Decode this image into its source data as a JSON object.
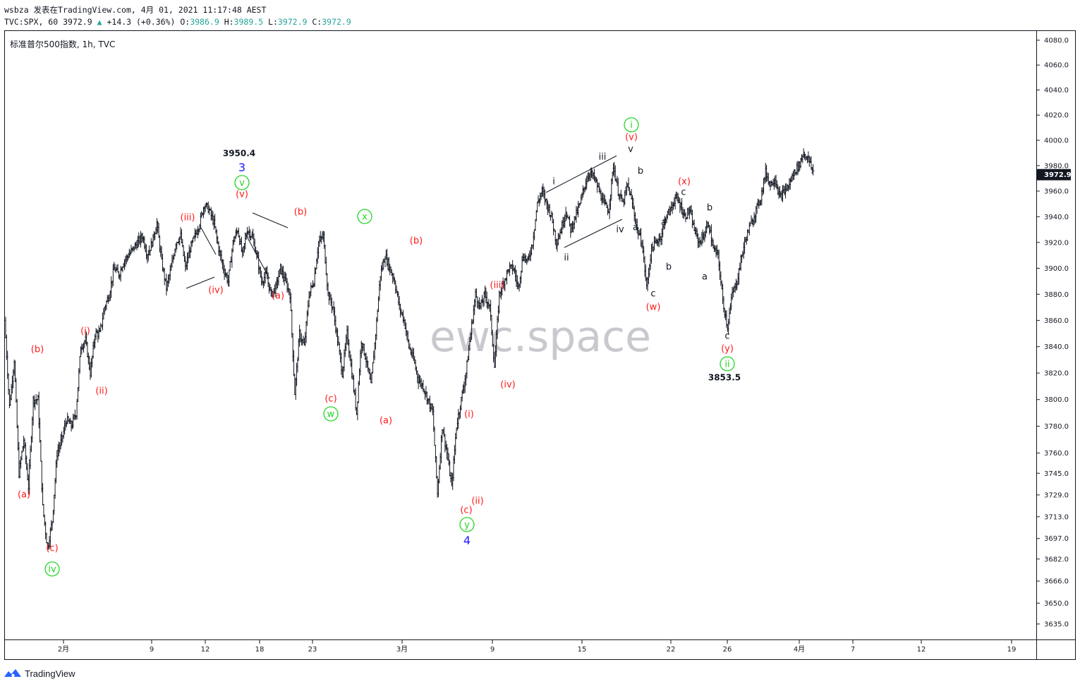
{
  "header": {
    "line1": "wsbza 发表在TradingView.com, 4月 01, 2021 11:17:48 AEST",
    "symbol": "TVC:SPX, 60",
    "last": "3972.9",
    "change_arrow": "▲",
    "change": "+14.3 (+0.36%)",
    "o_label": "O:",
    "o": "3986.9",
    "h_label": "H:",
    "h": "3989.5",
    "l_label": "L:",
    "l": "3972.9",
    "c_label": "C:",
    "c": "3972.9"
  },
  "chart_title": "标准普尔500指数, 1h, TVC",
  "watermark": "ewc.space",
  "footer": {
    "brand": "TradingView",
    "logo_icon": "tradingview-logo-icon"
  },
  "colors": {
    "bar": "#131722",
    "label_red": "#ff1a1a",
    "label_green": "#22d622",
    "label_blue": "#1a1aff",
    "price_tag_bg": "#131722",
    "up": "#26a69a"
  },
  "chart_data": {
    "type": "bar",
    "symbol": "TVC:SPX",
    "interval": "1h",
    "last_price": 3972.9,
    "y_axis": {
      "scale": "log",
      "range": [
        3620,
        4090
      ],
      "ticks": [
        4080.0,
        4060.0,
        4040.0,
        4020.0,
        4000.0,
        3980.0,
        3960.0,
        3940.0,
        3920.0,
        3900.0,
        3880.0,
        3860.0,
        3840.0,
        3820.0,
        3800.0,
        3780.0,
        3760.0,
        3745.0,
        3729.0,
        3713.0,
        3697.0,
        3682.0,
        3666.0,
        3650.0,
        3635.0
      ],
      "tick_labels": [
        "4080.0",
        "4060.0",
        "4040.0",
        "4020.0",
        "4000.0",
        "3980.0",
        "3960.0",
        "3940.0",
        "3920.0",
        "3900.0",
        "3880.0",
        "3860.0",
        "3840.0",
        "3820.0",
        "3800.0",
        "3780.0",
        "3760.0",
        "3745.0",
        "3729.0",
        "3713.0",
        "3697.0",
        "3682.0",
        "3666.0",
        "3650.0",
        "3635.0"
      ]
    },
    "x_axis": {
      "tick_labels": [
        "2月",
        "9",
        "12",
        "18",
        "23",
        "3月",
        "9",
        "15",
        "22",
        "26",
        "4月",
        "7",
        "12",
        "19"
      ]
    },
    "series": [
      {
        "description": "approximate hourly price path (bar highs/lows estimated from chart)",
        "price_path": [
          3860,
          3795,
          3830,
          3745,
          3770,
          3735,
          3800,
          3800,
          3720,
          3690,
          3710,
          3760,
          3770,
          3785,
          3780,
          3790,
          3840,
          3845,
          3820,
          3850,
          3850,
          3870,
          3880,
          3900,
          3895,
          3905,
          3910,
          3915,
          3920,
          3925,
          3910,
          3920,
          3935,
          3905,
          3885,
          3900,
          3920,
          3925,
          3900,
          3915,
          3925,
          3935,
          3950,
          3945,
          3935,
          3915,
          3900,
          3890,
          3920,
          3930,
          3910,
          3930,
          3925,
          3910,
          3890,
          3895,
          3880,
          3885,
          3900,
          3890,
          3880,
          3805,
          3850,
          3840,
          3880,
          3890,
          3920,
          3925,
          3880,
          3870,
          3845,
          3820,
          3850,
          3820,
          3790,
          3845,
          3830,
          3810,
          3850,
          3895,
          3910,
          3900,
          3890,
          3870,
          3860,
          3840,
          3830,
          3815,
          3810,
          3800,
          3790,
          3730,
          3780,
          3760,
          3735,
          3780,
          3800,
          3820,
          3850,
          3880,
          3870,
          3880,
          3870,
          3825,
          3880,
          3890,
          3900,
          3900,
          3885,
          3910,
          3905,
          3920,
          3950,
          3960,
          3950,
          3940,
          3920,
          3930,
          3945,
          3930,
          3940,
          3950,
          3965,
          3975,
          3970,
          3960,
          3950,
          3945,
          3980,
          3960,
          3950,
          3965,
          3950,
          3930,
          3920,
          3885,
          3915,
          3920,
          3925,
          3940,
          3945,
          3955,
          3950,
          3940,
          3945,
          3930,
          3920,
          3925,
          3935,
          3915,
          3910,
          3875,
          3855,
          3880,
          3890,
          3910,
          3925,
          3935,
          3945,
          3955,
          3975,
          3965,
          3970,
          3955,
          3960,
          3965,
          3975,
          3980,
          3990,
          3985,
          3975
        ]
      }
    ],
    "annotations": [
      {
        "text": "(a)",
        "color": "red"
      },
      {
        "text": "(b)",
        "color": "red"
      },
      {
        "text": "(c)",
        "color": "red"
      },
      {
        "text": "iv",
        "color": "green",
        "circled": true
      },
      {
        "text": "(i)",
        "color": "red"
      },
      {
        "text": "(ii)",
        "color": "red"
      },
      {
        "text": "(iii)",
        "color": "red"
      },
      {
        "text": "(iv)",
        "color": "red"
      },
      {
        "text": "3950.4",
        "color": "black"
      },
      {
        "text": "3",
        "color": "blue"
      },
      {
        "text": "v",
        "color": "green",
        "circled": true
      },
      {
        "text": "(v)",
        "color": "red"
      },
      {
        "text": "(b)",
        "color": "red"
      },
      {
        "text": "(a)",
        "color": "red"
      },
      {
        "text": "(c)",
        "color": "red"
      },
      {
        "text": "w",
        "color": "green",
        "circled": true
      },
      {
        "text": "x",
        "color": "green",
        "circled": true
      },
      {
        "text": "(b)",
        "color": "red"
      },
      {
        "text": "(a)",
        "color": "red"
      },
      {
        "text": "(i)",
        "color": "red"
      },
      {
        "text": "(c)",
        "color": "red"
      },
      {
        "text": "(ii)",
        "color": "red"
      },
      {
        "text": "y",
        "color": "green",
        "circled": true
      },
      {
        "text": "4",
        "color": "blue"
      },
      {
        "text": "(iii)",
        "color": "red"
      },
      {
        "text": "(iv)",
        "color": "red"
      },
      {
        "text": "i",
        "color": "black"
      },
      {
        "text": "ii",
        "color": "black"
      },
      {
        "text": "iii",
        "color": "black"
      },
      {
        "text": "iv",
        "color": "black"
      },
      {
        "text": "v",
        "color": "black"
      },
      {
        "text": "i",
        "color": "green",
        "circled": true
      },
      {
        "text": "(v)",
        "color": "red"
      },
      {
        "text": "b",
        "color": "black"
      },
      {
        "text": "a",
        "color": "black"
      },
      {
        "text": "c",
        "color": "black"
      },
      {
        "text": "(w)",
        "color": "red"
      },
      {
        "text": "a",
        "color": "black"
      },
      {
        "text": "b",
        "color": "black"
      },
      {
        "text": "(x)",
        "color": "red"
      },
      {
        "text": "c",
        "color": "black"
      },
      {
        "text": "a",
        "color": "black"
      },
      {
        "text": "b",
        "color": "black"
      },
      {
        "text": "c",
        "color": "black"
      },
      {
        "text": "(y)",
        "color": "red"
      },
      {
        "text": "ii",
        "color": "green",
        "circled": true
      },
      {
        "text": "3853.5",
        "color": "black"
      }
    ]
  }
}
